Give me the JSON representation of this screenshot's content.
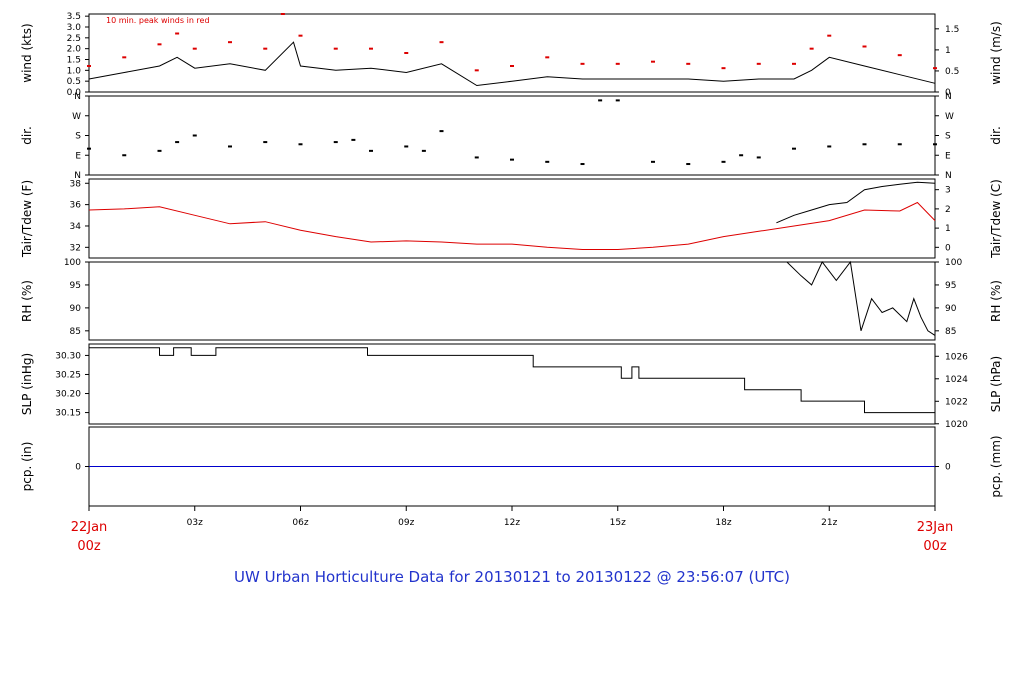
{
  "title": "UW Urban Horticulture Data for 20130121  to  20130122 @ 23:56:07  (UTC)",
  "colors": {
    "axis": "#000000",
    "red": "#dd0000",
    "blue": "#0000cc",
    "title": "#2233cc"
  },
  "time_axis": {
    "ticks": [
      "03z",
      "06z",
      "09z",
      "12z",
      "15z",
      "18z",
      "21z"
    ],
    "start_label": [
      "22Jan",
      "00z"
    ],
    "end_label": [
      "23Jan",
      "00z"
    ]
  },
  "chart_data": [
    {
      "type": "line",
      "ylabel": "wind (kts)",
      "ylabel_right": "wind (m/s)",
      "annotation": "10 min. peak winds in red",
      "yticks": [
        "0.0",
        "0.5",
        "1.0",
        "1.5",
        "2.0",
        "2.5",
        "3.0",
        "3.5"
      ],
      "yticks_right": [
        "0",
        "0.5",
        "1",
        "1.5"
      ],
      "ylim": [
        0,
        3.6
      ],
      "series": [
        {
          "color": "#000000",
          "x_hours": [
            0,
            1,
            2,
            2.5,
            3,
            4,
            5,
            5.8,
            6,
            7,
            8,
            9,
            10,
            11,
            12,
            13,
            14,
            15,
            16,
            17,
            18,
            19,
            20,
            20.5,
            21,
            22,
            23,
            24
          ],
          "values": [
            0.6,
            0.9,
            1.2,
            1.6,
            1.1,
            1.3,
            1.0,
            2.3,
            1.2,
            1.0,
            1.1,
            0.9,
            1.3,
            0.3,
            0.5,
            0.7,
            0.6,
            0.6,
            0.6,
            0.6,
            0.5,
            0.6,
            0.6,
            1.0,
            1.6,
            1.2,
            0.8,
            0.4
          ]
        },
        {
          "color": "#dd0000",
          "style": "points",
          "x_hours": [
            0,
            1,
            2,
            2.5,
            3,
            4,
            5,
            5.5,
            6,
            7,
            8,
            9,
            10,
            11,
            12,
            13,
            14,
            15,
            16,
            17,
            18,
            19,
            20,
            20.5,
            21,
            22,
            23,
            24
          ],
          "values": [
            1.2,
            1.6,
            2.2,
            2.7,
            2.0,
            2.3,
            2.0,
            3.6,
            2.6,
            2.0,
            2.0,
            1.8,
            2.3,
            1.0,
            1.2,
            1.6,
            1.3,
            1.3,
            1.4,
            1.3,
            1.1,
            1.3,
            1.3,
            2.0,
            2.6,
            2.1,
            1.7,
            1.1
          ]
        }
      ]
    },
    {
      "type": "scatter",
      "ylabel": "dir.",
      "ylabel_right": "dir.",
      "yticks": [
        "N",
        "E",
        "S",
        "W",
        "N"
      ],
      "ylim": [
        0,
        360
      ],
      "series": [
        {
          "color": "#000000",
          "x_hours": [
            0,
            1,
            2,
            2.5,
            3,
            4,
            5,
            6,
            7,
            7.5,
            8,
            9,
            9.5,
            10,
            11,
            12,
            13,
            14,
            14.5,
            15,
            16,
            17,
            18,
            18.5,
            19,
            20,
            21,
            22,
            23,
            24
          ],
          "values": [
            120,
            90,
            110,
            150,
            180,
            130,
            150,
            140,
            150,
            160,
            110,
            130,
            110,
            200,
            80,
            70,
            60,
            50,
            340,
            340,
            60,
            50,
            60,
            90,
            80,
            120,
            130,
            140,
            140,
            140
          ]
        }
      ]
    },
    {
      "type": "line",
      "ylabel": "Tair/Tdew (F)",
      "ylabel_right": "Tair/Tdew (C)",
      "yticks": [
        "32",
        "34",
        "36",
        "38"
      ],
      "yticks_right": [
        "0",
        "1",
        "2",
        "3"
      ],
      "ylim": [
        31,
        38.4
      ],
      "series": [
        {
          "color": "#dd0000",
          "x_hours": [
            0,
            1,
            2,
            3,
            4,
            5,
            6,
            7,
            8,
            9,
            10,
            11,
            12,
            13,
            14,
            15,
            16,
            17,
            18,
            19,
            20,
            21,
            22,
            23,
            23.5,
            24
          ],
          "values": [
            35.5,
            35.6,
            35.8,
            35.0,
            34.2,
            34.4,
            33.6,
            33.0,
            32.5,
            32.6,
            32.5,
            32.3,
            32.3,
            32.0,
            31.8,
            31.8,
            32.0,
            32.3,
            33.0,
            33.5,
            34.0,
            34.5,
            35.5,
            35.4,
            36.2,
            34.5
          ]
        },
        {
          "color": "#000000",
          "x_hours": [
            19.5,
            20,
            20.5,
            21,
            21.5,
            22,
            22.5,
            23,
            23.5,
            24
          ],
          "values": [
            34.3,
            35.0,
            35.5,
            36.0,
            36.2,
            37.4,
            37.7,
            37.9,
            38.1,
            38.0
          ]
        }
      ]
    },
    {
      "type": "line",
      "ylabel": "RH (%)",
      "ylabel_right": "RH (%)",
      "yticks": [
        "85",
        "90",
        "95",
        "100"
      ],
      "ylim": [
        83,
        100
      ],
      "series": [
        {
          "color": "#000000",
          "x_hours": [
            19.8,
            20.2,
            20.5,
            20.8,
            21.2,
            21.6,
            21.9,
            22.2,
            22.5,
            22.8,
            23.2,
            23.4,
            23.6,
            23.8,
            24
          ],
          "values": [
            100,
            97,
            95,
            100,
            96,
            100,
            85,
            92,
            89,
            90,
            87,
            92,
            88,
            85,
            84
          ]
        }
      ]
    },
    {
      "type": "line",
      "ylabel": "SLP (inHg)",
      "ylabel_right": "SLP (hPa)",
      "yticks": [
        "30.15",
        "30.20",
        "30.25",
        "30.30"
      ],
      "yticks_right": [
        "1020",
        "1022",
        "1024",
        "1026"
      ],
      "ylim": [
        30.12,
        30.33
      ],
      "series": [
        {
          "color": "#000000",
          "x_hours": [
            0,
            2,
            2,
            2.4,
            2.4,
            2.9,
            2.9,
            3.6,
            3.6,
            7.9,
            7.9,
            8.0,
            8.0,
            12.6,
            12.6,
            15.1,
            15.1,
            15.4,
            15.4,
            15.6,
            15.6,
            16.2,
            16.2,
            18.6,
            18.6,
            20.2,
            20.2,
            22.0,
            22.0,
            22.4,
            22.4,
            24
          ],
          "values": [
            30.32,
            30.32,
            30.3,
            30.3,
            30.32,
            30.32,
            30.3,
            30.3,
            30.32,
            30.32,
            30.3,
            30.3,
            30.3,
            30.3,
            30.27,
            30.27,
            30.24,
            30.24,
            30.27,
            30.27,
            30.24,
            30.24,
            30.24,
            30.24,
            30.21,
            30.21,
            30.18,
            30.18,
            30.15,
            30.15,
            30.15,
            30.15
          ]
        }
      ]
    },
    {
      "type": "line",
      "ylabel": "pcp. (in)",
      "ylabel_right": "pcp. (mm)",
      "yticks": [
        "0"
      ],
      "yticks_right": [
        "0"
      ],
      "ylim": [
        -1,
        1
      ],
      "series": [
        {
          "color": "#0000cc",
          "x_hours": [
            0,
            24
          ],
          "values": [
            0,
            0
          ]
        }
      ]
    }
  ]
}
